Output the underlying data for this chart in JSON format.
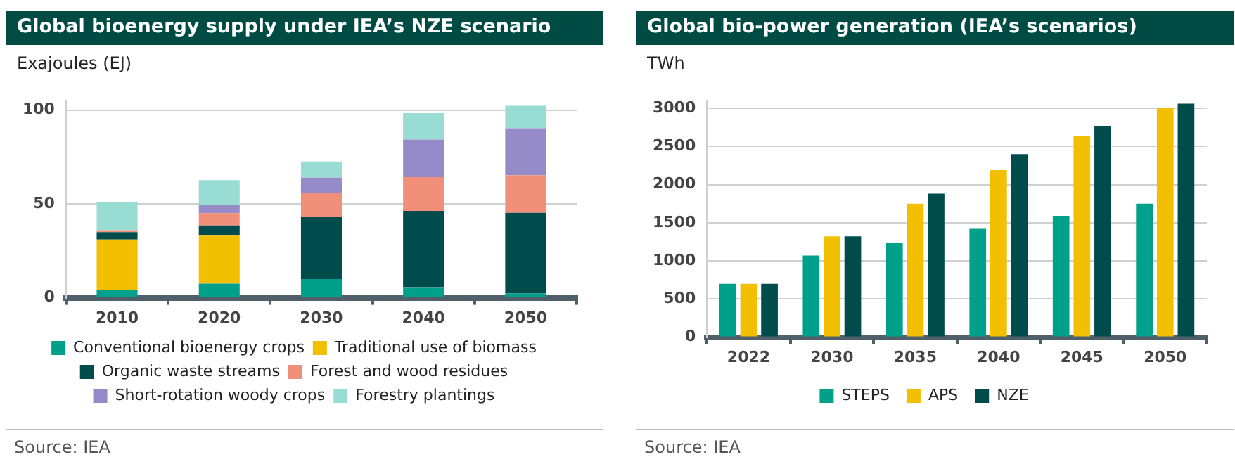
{
  "chart_data": [
    {
      "type": "bar",
      "title": "Global bioenergy supply under IEA’s NZE scenario",
      "ylabel": "Exajoules (EJ)",
      "categories": [
        "2010",
        "2020",
        "2030",
        "2040",
        "2050"
      ],
      "stacked": true,
      "ylim": [
        0,
        105
      ],
      "yticks": [
        0,
        50,
        100
      ],
      "grid": "y",
      "legend": "bottom",
      "annotations": [
        "Source: IEA"
      ],
      "series": [
        {
          "name": "Conventional bioenergy crops",
          "color": "#00a08a",
          "values": [
            4,
            7.5,
            10,
            5.7,
            2.3
          ]
        },
        {
          "name": "Traditional use of biomass",
          "color": "#f2c000",
          "values": [
            27,
            26,
            0,
            0,
            0
          ]
        },
        {
          "name": "Organic waste streams",
          "color": "#004c4c",
          "values": [
            4,
            5,
            33,
            40.6,
            43
          ]
        },
        {
          "name": "Forest and wood residues",
          "color": "#f0907a",
          "values": [
            1,
            6.6,
            13,
            18,
            20
          ]
        },
        {
          "name": "Short-rotation woody crops",
          "color": "#948bc8",
          "values": [
            0,
            4.6,
            8,
            20,
            25
          ]
        },
        {
          "name": "Forestry plantings",
          "color": "#99dcd4",
          "values": [
            15,
            13,
            8.6,
            14,
            12
          ]
        }
      ]
    },
    {
      "type": "bar",
      "title": "Global bio-power generation (IEA’s scenarios)",
      "ylabel": "TWh",
      "categories": [
        "2022",
        "2030",
        "2035",
        "2040",
        "2045",
        "2050"
      ],
      "ylim": [
        0,
        3100
      ],
      "yticks": [
        0,
        500,
        1000,
        1500,
        2000,
        2500,
        3000
      ],
      "grid": "y",
      "legend": "bottom",
      "annotations": [
        "Source: IEA"
      ],
      "series": [
        {
          "name": "STEPS",
          "color": "#00a08a",
          "values": [
            700,
            1070,
            1240,
            1420,
            1590,
            1750
          ]
        },
        {
          "name": "APS",
          "color": "#f2c000",
          "values": [
            700,
            1320,
            1750,
            2190,
            2640,
            3000
          ]
        },
        {
          "name": "NZE",
          "color": "#004c4c",
          "values": [
            700,
            1320,
            1880,
            2400,
            2770,
            3060
          ]
        }
      ]
    }
  ]
}
